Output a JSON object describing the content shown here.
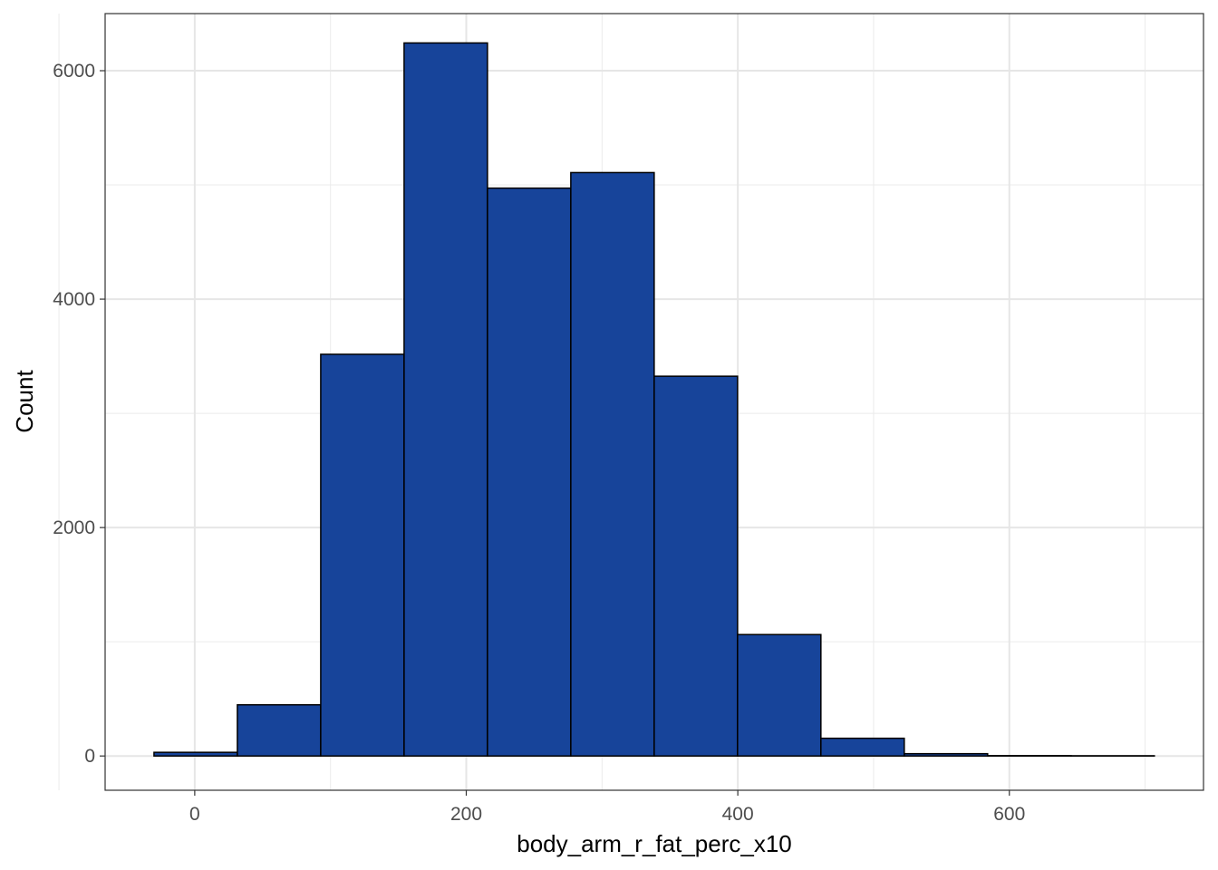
{
  "chart_data": {
    "type": "bar",
    "subtype": "histogram",
    "title": "",
    "xlabel": "body_arm_r_fat_perc_x10",
    "ylabel": "Count",
    "xlim": [
      -66,
      743
    ],
    "ylim": [
      -300,
      6500
    ],
    "x_ticks": [
      0,
      200,
      400,
      600
    ],
    "x_tick_labels": [
      "0",
      "200",
      "400",
      "600"
    ],
    "y_ticks": [
      0,
      2000,
      4000,
      6000
    ],
    "y_tick_labels": [
      "0",
      "2000",
      "4000",
      "6000"
    ],
    "grid": true,
    "bin_start": -30,
    "bin_width": 61.4,
    "values": [
      32,
      448,
      3517,
      6243,
      4972,
      5108,
      3325,
      1063,
      155,
      20,
      3,
      2
    ],
    "fill_color": "#17449A",
    "outline_color": "#000000"
  }
}
